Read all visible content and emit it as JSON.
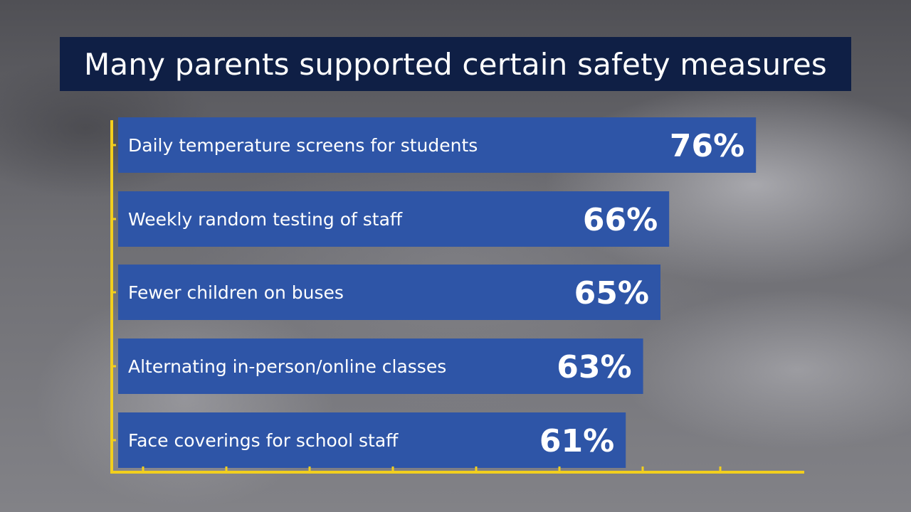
{
  "title": "Many parents supported certain safety measures",
  "chart_data": {
    "type": "bar",
    "orientation": "horizontal",
    "categories": [
      "Daily temperature screens for students",
      "Weekly random testing of staff",
      "Fewer children on buses",
      "Alternating in-person/online classes",
      "Face coverings for school staff"
    ],
    "values": [
      76,
      66,
      65,
      63,
      61
    ],
    "value_labels": [
      "76%",
      "66%",
      "65%",
      "63%",
      "61%"
    ],
    "bar_color": "#2e55a7",
    "axis_color": "#f2cf1d",
    "title_bg_color": "#0f1f45"
  }
}
